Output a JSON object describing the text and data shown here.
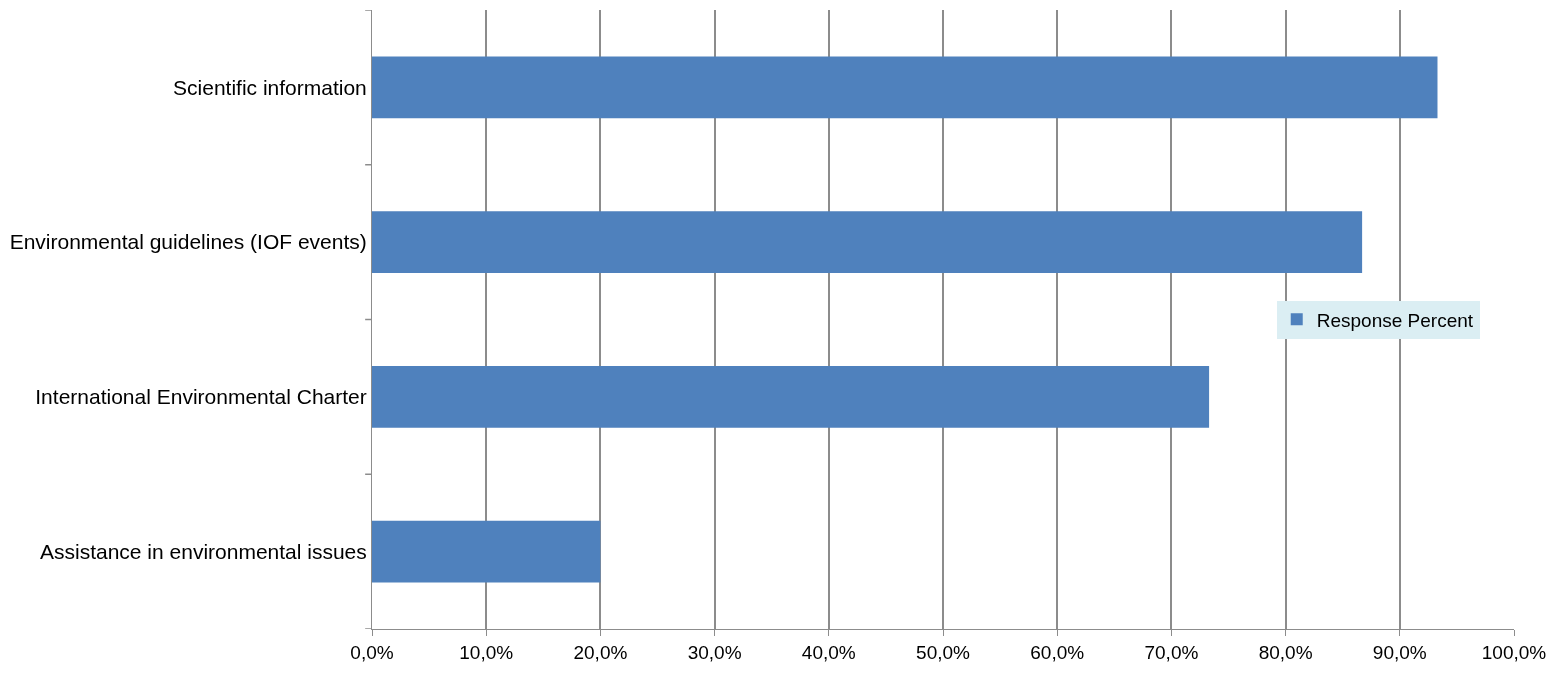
{
  "chart_data": {
    "type": "bar",
    "orientation": "horizontal",
    "categories": [
      "Scientific information",
      "Environmental guidelines (IOF events)",
      "International Environmental Charter",
      "Assistance in environmental issues"
    ],
    "series": [
      {
        "name": "Response Percent",
        "color": "#4f81bd",
        "values": [
          93.3,
          86.7,
          73.3,
          20.0
        ]
      }
    ],
    "xlim": [
      0,
      100
    ],
    "xticks": [
      {
        "value": 0,
        "label": "0,0%"
      },
      {
        "value": 10,
        "label": "10,0%"
      },
      {
        "value": 20,
        "label": "20,0%"
      },
      {
        "value": 30,
        "label": "30,0%"
      },
      {
        "value": 40,
        "label": "40,0%"
      },
      {
        "value": 50,
        "label": "50,0%"
      },
      {
        "value": 60,
        "label": "60,0%"
      },
      {
        "value": 70,
        "label": "70,0%"
      },
      {
        "value": 80,
        "label": "80,0%"
      },
      {
        "value": 90,
        "label": "90,0%"
      },
      {
        "value": 100,
        "label": "100,0%"
      }
    ],
    "grid": "x",
    "legend": "right"
  }
}
